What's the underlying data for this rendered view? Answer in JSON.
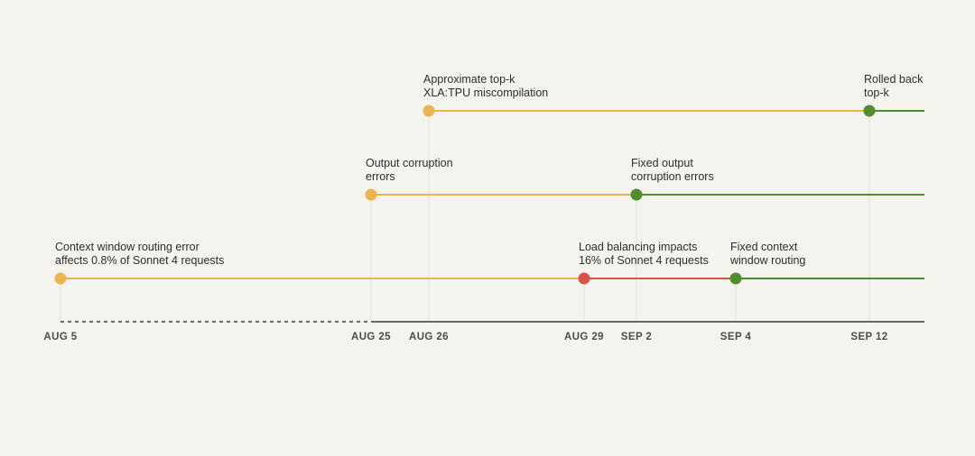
{
  "colors": {
    "background": "#f5f3ee",
    "issue": "#ecb44f",
    "load_balancing": "#d9534a",
    "fixed": "#4e8e2f",
    "axis": "#6b6862",
    "gridline": "#e2dfd8",
    "text": "#2f2d29"
  },
  "axis": {
    "dates": [
      "AUG 5",
      "AUG 25",
      "AUG 26",
      "AUG 29",
      "SEP 2",
      "SEP 4",
      "SEP 12"
    ]
  },
  "tracks": [
    {
      "name": "top-k",
      "segments": [
        {
          "from": "AUG 26",
          "to": "SEP 12",
          "status": "issue"
        },
        {
          "from": "SEP 12",
          "to": "end",
          "status": "fixed"
        }
      ],
      "events": [
        {
          "date": "AUG 26",
          "status": "issue",
          "label": "Approximate top-k\nXLA:TPU miscompilation"
        },
        {
          "date": "SEP 12",
          "status": "fixed",
          "label": "Rolled back\ntop-k"
        }
      ]
    },
    {
      "name": "output-corruption",
      "segments": [
        {
          "from": "AUG 25",
          "to": "SEP 2",
          "status": "issue"
        },
        {
          "from": "SEP 2",
          "to": "end",
          "status": "fixed"
        }
      ],
      "events": [
        {
          "date": "AUG 25",
          "status": "issue",
          "label": "Output corruption\nerrors"
        },
        {
          "date": "SEP 2",
          "status": "fixed",
          "label": "Fixed output\ncorruption errors"
        }
      ]
    },
    {
      "name": "context-window-routing",
      "segments": [
        {
          "from": "AUG 5",
          "to": "AUG 29",
          "status": "issue"
        },
        {
          "from": "AUG 29",
          "to": "SEP 4",
          "status": "load_balancing"
        },
        {
          "from": "SEP 4",
          "to": "end",
          "status": "fixed"
        }
      ],
      "events": [
        {
          "date": "AUG 5",
          "status": "issue",
          "label": "Context window routing error\naffects 0.8% of Sonnet 4 requests"
        },
        {
          "date": "AUG 29",
          "status": "load_balancing",
          "label": "Load balancing impacts\n16% of Sonnet 4 requests"
        },
        {
          "date": "SEP 4",
          "status": "fixed",
          "label": "Fixed context\nwindow routing"
        }
      ]
    }
  ]
}
